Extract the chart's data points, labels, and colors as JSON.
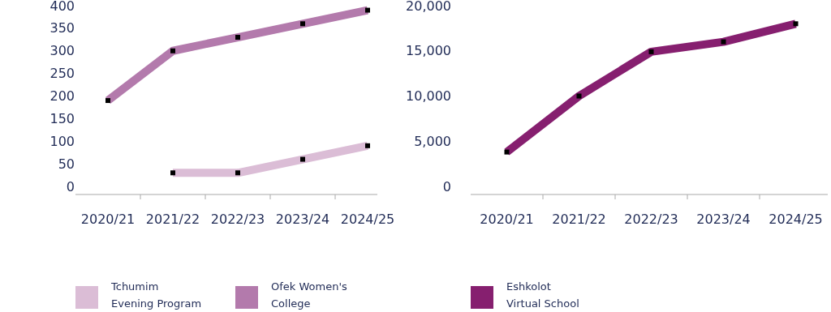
{
  "chart_data": [
    {
      "type": "line",
      "categories": [
        "2020/21",
        "2021/22",
        "2022/23",
        "2023/24",
        "2024/25"
      ],
      "series": [
        {
          "name": "Tchumim Evening Program",
          "color": "#dbbdd6",
          "values": [
            null,
            30,
            30,
            60,
            90
          ]
        },
        {
          "name": "Ofek Women's College",
          "color": "#b37aac",
          "values": [
            190,
            300,
            330,
            360,
            390
          ]
        }
      ],
      "ylim": [
        0,
        400
      ],
      "yticks": [
        0,
        50,
        100,
        150,
        200,
        250,
        300,
        350,
        400
      ],
      "marker": "square",
      "legend": "bottom",
      "grid": false
    },
    {
      "type": "line",
      "categories": [
        "2020/21",
        "2021/22",
        "2022/23",
        "2023/24",
        "2024/25"
      ],
      "series": [
        {
          "name": "Eshkolot Virtual School",
          "color": "#861f6f",
          "values": [
            3800,
            10000,
            14900,
            16000,
            18000
          ]
        }
      ],
      "ylim": [
        0,
        20000
      ],
      "yticks": [
        0,
        {
          "value": 5000,
          "label": "5,000"
        },
        {
          "value": 10000,
          "label": "10,000"
        },
        {
          "value": 15000,
          "label": "15,000"
        },
        {
          "value": 20000,
          "label": "20,000"
        }
      ],
      "marker": "square",
      "legend": "bottom",
      "grid": false
    }
  ]
}
